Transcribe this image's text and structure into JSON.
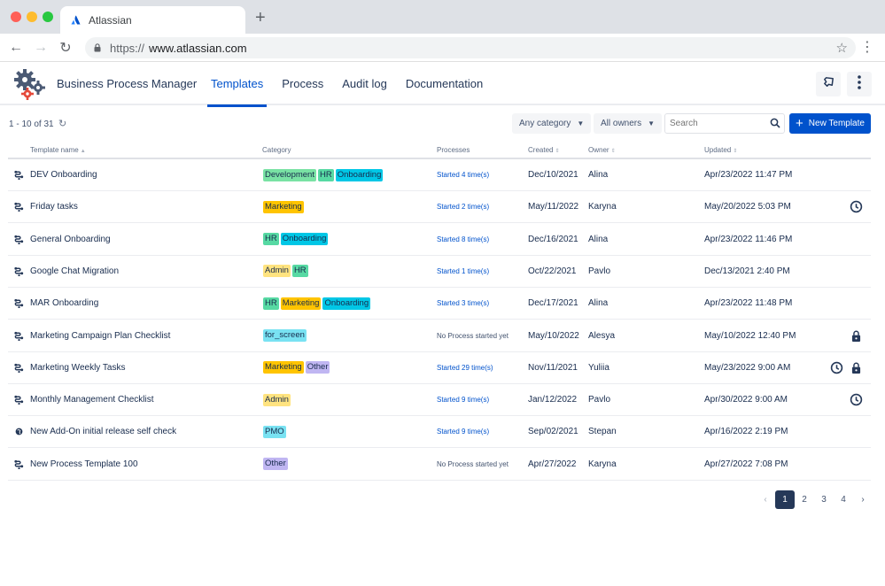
{
  "browser": {
    "tab_title": "Atlassian",
    "url_protocol": "https://",
    "url_host": "www.atlassian.com"
  },
  "app": {
    "title": "Business Process Manager",
    "nav": [
      {
        "label": "Templates",
        "active": true
      },
      {
        "label": "Process",
        "active": false
      },
      {
        "label": "Audit log",
        "active": false
      },
      {
        "label": "Documentation",
        "active": false
      }
    ]
  },
  "toolbar": {
    "count_text": "1 - 10 of 31",
    "category_filter": "Any category",
    "owner_filter": "All owners",
    "search_placeholder": "Search",
    "new_button": "New Template"
  },
  "table": {
    "headers": {
      "name": "Template name",
      "category": "Category",
      "processes": "Processes",
      "created": "Created",
      "owner": "Owner",
      "updated": "Updated"
    },
    "rows": [
      {
        "name": "DEV Onboarding",
        "icon": "flow-icon",
        "tags": [
          "Development",
          "HR",
          "Onboarding"
        ],
        "processes": "Started 4 time(s)",
        "started": true,
        "created": "Dec/10/2021",
        "owner": "Alina",
        "updated": "Apr/23/2022 11:47 PM",
        "clock": false,
        "lock": false
      },
      {
        "name": "Friday tasks",
        "icon": "flow-icon",
        "tags": [
          "Marketing"
        ],
        "processes": "Started 2 time(s)",
        "started": true,
        "created": "May/11/2022",
        "owner": "Karyna",
        "updated": "May/20/2022 5:03 PM",
        "clock": true,
        "lock": false
      },
      {
        "name": "General Onboarding",
        "icon": "flow-icon",
        "tags": [
          "HR",
          "Onboarding"
        ],
        "processes": "Started 8 time(s)",
        "started": true,
        "created": "Dec/16/2021",
        "owner": "Alina",
        "updated": "Apr/23/2022 11:46 PM",
        "clock": false,
        "lock": false
      },
      {
        "name": "Google Chat Migration",
        "icon": "flow-icon",
        "tags": [
          "Admin",
          "HR"
        ],
        "processes": "Started 1 time(s)",
        "started": true,
        "created": "Oct/22/2021",
        "owner": "Pavlo",
        "updated": "Dec/13/2021 2:40 PM",
        "clock": false,
        "lock": false
      },
      {
        "name": "MAR Onboarding",
        "icon": "flow-icon",
        "tags": [
          "HR",
          "Marketing",
          "Onboarding"
        ],
        "processes": "Started 3 time(s)",
        "started": true,
        "created": "Dec/17/2021",
        "owner": "Alina",
        "updated": "Apr/23/2022 11:48 PM",
        "clock": false,
        "lock": false
      },
      {
        "name": "Marketing Campaign Plan Checklist",
        "icon": "flow-icon",
        "tags": [
          "for_screen"
        ],
        "processes": "No Process started yet",
        "started": false,
        "created": "May/10/2022",
        "owner": "Alesya",
        "updated": "May/10/2022 12:40 PM",
        "clock": false,
        "lock": true
      },
      {
        "name": "Marketing Weekly Tasks",
        "icon": "flow-icon",
        "tags": [
          "Marketing",
          "Other"
        ],
        "processes": "Started 29 time(s)",
        "started": true,
        "created": "Nov/11/2021",
        "owner": "Yuliia",
        "updated": "May/23/2022 9:00 AM",
        "clock": true,
        "lock": true
      },
      {
        "name": "Monthly Management Checklist",
        "icon": "flow-icon",
        "tags": [
          "Admin"
        ],
        "processes": "Started 9 time(s)",
        "started": true,
        "created": "Jan/12/2022",
        "owner": "Pavlo",
        "updated": "Apr/30/2022 9:00 AM",
        "clock": true,
        "lock": false
      },
      {
        "name": "New Add-On initial release self check",
        "icon": "globe-icon",
        "tags": [
          "PMO"
        ],
        "processes": "Started 9 time(s)",
        "started": true,
        "created": "Sep/02/2021",
        "owner": "Stepan",
        "updated": "Apr/16/2022 2:19 PM",
        "clock": false,
        "lock": false
      },
      {
        "name": "New Process Template 100",
        "icon": "flow-icon",
        "tags": [
          "Other"
        ],
        "processes": "No Process started yet",
        "started": false,
        "created": "Apr/27/2022",
        "owner": "Karyna",
        "updated": "Apr/27/2022 7:08 PM",
        "clock": false,
        "lock": false
      }
    ]
  },
  "tag_colors": {
    "Development": "#79e2a4",
    "HR": "#57d9a3",
    "Onboarding": "#00c7e6",
    "Marketing": "#ffc400",
    "Admin": "#ffe380",
    "for_screen": "#79e2f2",
    "Other": "#c0b6f2",
    "PMO": "#79e2f2"
  },
  "pagination": {
    "pages": [
      "1",
      "2",
      "3",
      "4"
    ],
    "current": "1"
  }
}
